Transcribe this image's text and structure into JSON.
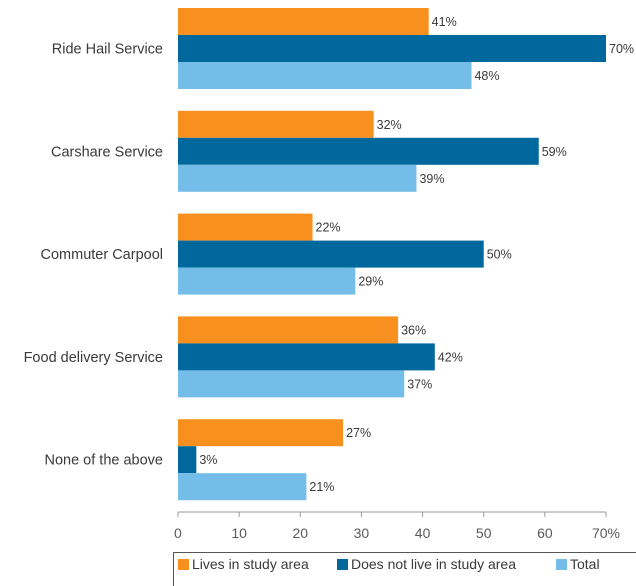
{
  "chart_data": {
    "type": "bar",
    "orientation": "horizontal",
    "categories": [
      "Ride Hail Service",
      "Carshare Service",
      "Commuter Carpool",
      "Food delivery Service",
      "None of the above"
    ],
    "series": [
      {
        "name": "Lives in study area",
        "color": "#f7901e",
        "values": [
          41,
          32,
          22,
          36,
          27
        ]
      },
      {
        "name": "Does not live in study area",
        "color": "#00689c",
        "values": [
          70,
          59,
          50,
          42,
          3
        ]
      },
      {
        "name": "Total",
        "color": "#73bde8",
        "values": [
          48,
          39,
          29,
          37,
          21
        ]
      }
    ],
    "value_suffix": "%",
    "xlim": [
      0,
      70
    ],
    "xticks": [
      "0",
      "10",
      "20",
      "30",
      "40",
      "50",
      "60",
      "70%"
    ],
    "grid": false,
    "legend_position": "bottom"
  }
}
